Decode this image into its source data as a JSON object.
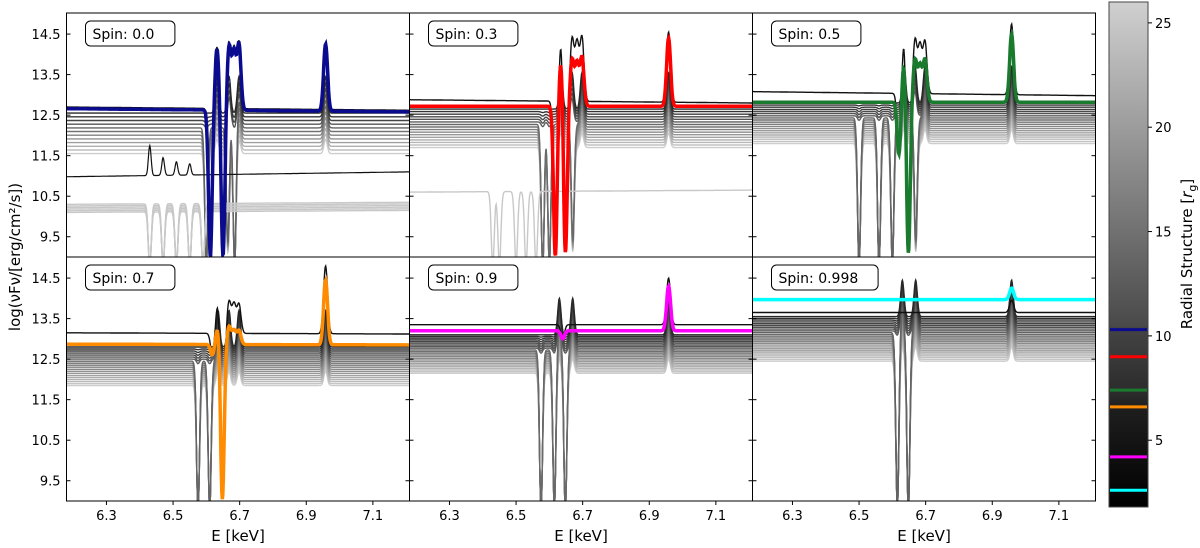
{
  "figure": {
    "ylabel": "log(νFν/[erg/cm²/s])",
    "xlabel": "E [keV]"
  },
  "chart_data": [
    {
      "type": "line",
      "title": "Spin: 0.0",
      "xlim": [
        6.18,
        7.21
      ],
      "ylim": [
        9.0,
        15.02
      ],
      "xticks": [
        "6.3",
        "6.5",
        "6.7",
        "6.9",
        "7.1"
      ],
      "yticks": [
        "9.5",
        "10.5",
        "11.5",
        "12.5",
        "13.5",
        "14.5"
      ],
      "highlight": {
        "color": "#0b0b8f",
        "radius_rg": 10.3,
        "continuum": [
          12.66,
          12.58
        ],
        "peaks": [
          [
            6.632,
            14.15
          ],
          [
            6.668,
            14.18
          ],
          [
            6.683,
            14.02
          ],
          [
            6.698,
            14.22
          ],
          [
            6.958,
            14.25
          ]
        ],
        "dips": [
          [
            6.612,
            9.0
          ],
          [
            6.65,
            9.0
          ]
        ]
      },
      "top_curve": {
        "continuum": [
          12.7,
          12.62
        ],
        "peaks": [
          [
            6.632,
            14.2
          ],
          [
            6.668,
            14.24
          ],
          [
            6.683,
            14.08
          ],
          [
            6.698,
            14.27
          ],
          [
            6.958,
            14.3
          ]
        ]
      },
      "gray_family": {
        "range": [
          12.55,
          11.55
        ],
        "count": 12,
        "peaks": [
          6.632,
          6.668,
          6.698,
          6.958
        ],
        "dips": [
          6.6,
          6.665,
          6.685
        ]
      },
      "low_group": {
        "range": [
          10.3,
          10.1
        ],
        "count": 6,
        "dips": [
          6.43,
          6.47,
          6.51,
          6.55,
          6.59
        ]
      },
      "extra_line": {
        "continuum": [
          10.98,
          11.1
        ],
        "peaks": [
          [
            6.43,
            11.75
          ],
          [
            6.47,
            11.45
          ],
          [
            6.51,
            11.35
          ],
          [
            6.55,
            11.3
          ]
        ]
      }
    },
    {
      "type": "line",
      "title": "Spin: 0.3",
      "xlim": [
        6.18,
        7.21
      ],
      "ylim": [
        9.0,
        15.02
      ],
      "xticks": [
        "6.3",
        "6.5",
        "6.7",
        "6.9",
        "7.1"
      ],
      "yticks": [
        "9.5",
        "10.5",
        "11.5",
        "12.5",
        "13.5",
        "14.5"
      ],
      "highlight": {
        "color": "#ff0000",
        "radius_rg": 9.0,
        "continuum": [
          12.72,
          12.72
        ],
        "peaks": [
          [
            6.635,
            13.9
          ],
          [
            6.668,
            13.85
          ],
          [
            6.683,
            13.75
          ],
          [
            6.698,
            13.9
          ],
          [
            6.958,
            14.4
          ]
        ],
        "dips": [
          [
            6.618,
            9.0
          ],
          [
            6.648,
            9.0
          ]
        ]
      },
      "top_curve": {
        "continuum": [
          12.88,
          12.8
        ],
        "peaks": [
          [
            6.635,
            14.33
          ],
          [
            6.668,
            14.37
          ],
          [
            6.683,
            14.25
          ],
          [
            6.698,
            14.4
          ],
          [
            6.958,
            14.55
          ]
        ]
      },
      "gray_family": {
        "range": [
          12.65,
          11.7
        ],
        "count": 16,
        "peaks": [
          6.635,
          6.668,
          6.698,
          6.958
        ],
        "dips": [
          6.58,
          6.6,
          6.67
        ]
      },
      "low_group": {
        "range": [
          10.6,
          10.6
        ],
        "count": 1,
        "dips": [
          6.43,
          6.45,
          6.5,
          6.53,
          6.56
        ]
      }
    },
    {
      "type": "line",
      "title": "Spin: 0.5",
      "xlim": [
        6.18,
        7.21
      ],
      "ylim": [
        9.0,
        15.02
      ],
      "xticks": [
        "6.3",
        "6.5",
        "6.7",
        "6.9",
        "7.1"
      ],
      "yticks": [
        "9.5",
        "10.5",
        "11.5",
        "12.5",
        "13.5",
        "14.5"
      ],
      "highlight": {
        "color": "#1a7a2e",
        "radius_rg": 7.4,
        "continuum": [
          12.82,
          12.82
        ],
        "peaks": [
          [
            6.635,
            13.85
          ],
          [
            6.668,
            13.85
          ],
          [
            6.683,
            13.7
          ],
          [
            6.698,
            13.85
          ],
          [
            6.958,
            14.5
          ]
        ],
        "dips": [
          [
            6.62,
            11.5
          ],
          [
            6.648,
            9.0
          ]
        ]
      },
      "top_curve": {
        "continuum": [
          13.08,
          12.98
        ],
        "peaks": [
          [
            6.635,
            14.35
          ],
          [
            6.668,
            14.35
          ],
          [
            6.683,
            14.2
          ],
          [
            6.698,
            14.3
          ],
          [
            6.958,
            14.75
          ]
        ]
      },
      "gray_family": {
        "range": [
          12.8,
          11.8
        ],
        "count": 20,
        "peaks": [
          6.635,
          6.668,
          6.698,
          6.958
        ],
        "dips": [
          6.5,
          6.56,
          6.6,
          6.67
        ]
      }
    },
    {
      "type": "line",
      "title": "Spin: 0.7",
      "xlim": [
        6.18,
        7.21
      ],
      "ylim": [
        9.0,
        15.02
      ],
      "xticks": [
        "6.3",
        "6.5",
        "6.7",
        "6.9",
        "7.1"
      ],
      "yticks": [
        "9.5",
        "10.5",
        "11.5",
        "12.5",
        "13.5",
        "14.5"
      ],
      "highlight": {
        "color": "#ff8c00",
        "radius_rg": 6.6,
        "continuum": [
          12.87,
          12.85
        ],
        "peaks": [
          [
            6.635,
            13.3
          ],
          [
            6.668,
            13.3
          ],
          [
            6.683,
            13.2
          ],
          [
            6.698,
            13.2
          ],
          [
            6.958,
            14.45
          ]
        ],
        "dips": [
          [
            6.618,
            12.6
          ],
          [
            6.648,
            9.0
          ]
        ]
      },
      "top_curve": {
        "continuum": [
          13.15,
          13.12
        ],
        "peaks": [
          [
            6.635,
            13.9
          ],
          [
            6.668,
            13.92
          ],
          [
            6.683,
            13.85
          ],
          [
            6.698,
            13.85
          ],
          [
            6.958,
            14.8
          ]
        ]
      },
      "gray_family": {
        "range": [
          12.8,
          11.85
        ],
        "count": 20,
        "peaks": [
          6.635,
          6.668,
          6.698,
          6.958
        ],
        "dips": [
          6.575,
          6.61
        ]
      }
    },
    {
      "type": "line",
      "title": "Spin: 0.9",
      "xlim": [
        6.18,
        7.21
      ],
      "ylim": [
        9.0,
        15.02
      ],
      "xticks": [
        "6.3",
        "6.5",
        "6.7",
        "6.9",
        "7.1"
      ],
      "yticks": [
        "9.5",
        "10.5",
        "11.5",
        "12.5",
        "13.5",
        "14.5"
      ],
      "highlight": {
        "color": "#ff00ff",
        "radius_rg": 4.2,
        "continuum": [
          13.2,
          13.2
        ],
        "peaks": [
          [
            6.958,
            14.3
          ]
        ],
        "dips": [
          [
            6.64,
            13.0
          ]
        ]
      },
      "top_curve": {
        "continuum": [
          13.35,
          13.35
        ],
        "peaks": [
          [
            6.958,
            14.5
          ]
        ]
      },
      "gray_family": {
        "range": [
          13.1,
          12.15
        ],
        "count": 24,
        "peaks": [
          6.63,
          6.67,
          6.958
        ],
        "dips": [
          6.575,
          6.615,
          6.648
        ]
      }
    },
    {
      "type": "line",
      "title": "Spin: 0.998",
      "xlim": [
        6.18,
        7.21
      ],
      "ylim": [
        9.0,
        15.02
      ],
      "xticks": [
        "6.3",
        "6.5",
        "6.7",
        "6.9",
        "7.1"
      ],
      "yticks": [
        "9.5",
        "10.5",
        "11.5",
        "12.5",
        "13.5",
        "14.5"
      ],
      "highlight": {
        "color": "#00ffff",
        "radius_rg": 2.6,
        "continuum": [
          13.97,
          13.97
        ],
        "peaks": [
          [
            6.958,
            14.25
          ]
        ],
        "dips": []
      },
      "top_curve": {
        "continuum": [
          13.65,
          13.65
        ],
        "peaks": [
          [
            6.958,
            13.95
          ]
        ]
      },
      "gray_family": {
        "range": [
          13.55,
          12.45
        ],
        "count": 26,
        "peaks": [
          6.63,
          6.67,
          6.958
        ],
        "dips": [
          6.615,
          6.648
        ]
      }
    }
  ],
  "colorbar": {
    "label": "Radial Structure [r_g]",
    "label_main": "Radial Structure [",
    "label_sym": "r",
    "label_sub": "g",
    "label_end": "]",
    "range": [
      1.8,
      26.0
    ],
    "ticks": [
      "5",
      "10",
      "15",
      "20",
      "25"
    ],
    "colormap": "gray (light = large radius, dark = small radius)"
  }
}
